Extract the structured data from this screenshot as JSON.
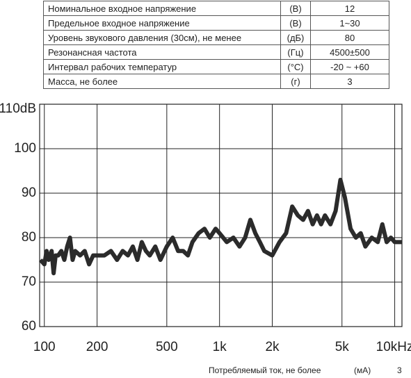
{
  "table": {
    "rows": [
      [
        "Номинальное входное напряжение",
        "(В)",
        "12"
      ],
      [
        "Предельное входное напряжение",
        "(В)",
        "1~30"
      ],
      [
        "Уровень звукового давления (30см), не менее",
        "(дБ)",
        "80"
      ],
      [
        "Резонансная частота",
        "(Гц)",
        "4500±500"
      ],
      [
        "Интервал рабочих температур",
        "(°С)",
        "-20 ~ +60"
      ],
      [
        "Масса, не более",
        "(г)",
        "3"
      ]
    ]
  },
  "footer_row": [
    "Потребляемый ток, не более",
    "(мА)",
    "3"
  ],
  "chart_data": {
    "type": "line",
    "log_x": true,
    "grid": true,
    "xlim": [
      94,
      11000
    ],
    "xticks": [
      100,
      200,
      500,
      {
        "value": 1000,
        "label": "1k"
      },
      {
        "value": 2000,
        "label": "2k"
      },
      {
        "value": 5000,
        "label": "5k"
      },
      {
        "value": 10000,
        "label": "10kHz"
      }
    ],
    "ylim": [
      60,
      110
    ],
    "yticks": [
      {
        "value": 110,
        "label": "110dB"
      },
      100,
      90,
      80,
      70,
      60
    ],
    "x": [
      95,
      100,
      103,
      106,
      110,
      113,
      116,
      120,
      125,
      130,
      135,
      140,
      145,
      150,
      160,
      170,
      180,
      190,
      200,
      220,
      240,
      260,
      280,
      300,
      320,
      340,
      360,
      380,
      400,
      430,
      460,
      500,
      540,
      580,
      620,
      660,
      700,
      760,
      820,
      880,
      950,
      1000,
      1100,
      1200,
      1300,
      1400,
      1500,
      1600,
      1700,
      1800,
      2000,
      2200,
      2400,
      2600,
      2800,
      3000,
      3200,
      3400,
      3600,
      3800,
      4000,
      4300,
      4600,
      4900,
      5200,
      5600,
      6000,
      6400,
      6800,
      7400,
      8000,
      8500,
      9000,
      9500,
      10000,
      11000
    ],
    "series": [
      {
        "color": "#2b2b2b",
        "values": [
          75,
          74,
          77,
          75,
          77,
          72,
          76,
          76,
          77,
          75,
          78,
          80,
          75,
          77,
          76,
          77,
          74,
          76,
          76,
          76,
          77,
          75,
          77,
          76,
          78,
          75,
          79,
          77,
          76,
          78,
          75,
          78,
          80,
          77,
          77,
          76,
          79,
          81,
          82,
          80,
          82,
          81,
          79,
          80,
          78,
          80,
          84,
          81,
          79,
          77,
          76,
          79,
          81,
          87,
          85,
          84,
          86,
          83,
          85,
          83,
          85,
          83,
          86,
          93,
          89,
          82,
          80,
          81,
          78,
          80,
          79,
          83,
          79,
          80,
          79,
          79
        ]
      }
    ]
  }
}
